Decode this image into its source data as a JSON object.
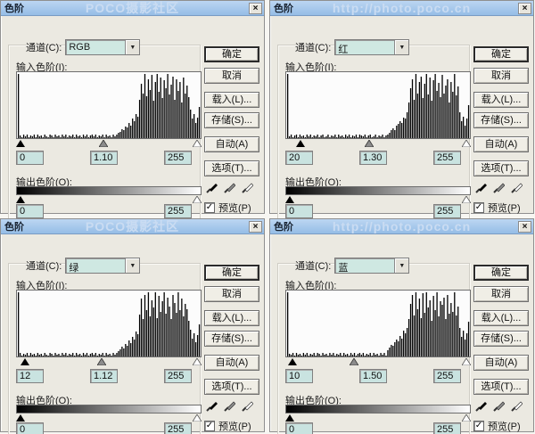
{
  "window_title": "色阶",
  "buttons": {
    "ok": "确定",
    "cancel": "取消",
    "load": "载入(L)...",
    "save": "存储(S)...",
    "auto": "自动(A)",
    "options": "选项(T)...",
    "preview": "预览(P)",
    "close": "×",
    "combo_arrow": "▼",
    "preview_check": "✓"
  },
  "labels": {
    "channel": "通道(C):",
    "input_levels": "输入色阶(I):",
    "output_levels": "输出色阶(O):"
  },
  "colors": {
    "titlebar_top": "#bcd6f2",
    "titlebar_bottom": "#95bde6",
    "watermark_text": "#cadcf2",
    "dialog_bg": "#ebe9e1",
    "field_bg": "#c9e3e0",
    "histogram_bar": "#000000",
    "slider_gray": "#8c8c8c"
  },
  "icons": {
    "eyedropper_black_tip": "#000000",
    "eyedropper_gray_tip": "#8c8c8c",
    "eyedropper_white_tip": "#ffffff"
  },
  "dialogs": [
    {
      "watermark": "POCO摄影社区",
      "channel_value": "RGB",
      "input_values": {
        "black": "0",
        "gamma": "1.10",
        "white": "255"
      },
      "output_values": {
        "black": "0",
        "white": "255"
      },
      "sliders": {
        "black_pct": 0,
        "gray_pct": 47,
        "white_pct": 100
      },
      "preview_checked": true,
      "histogram": [
        100,
        4,
        2,
        5,
        3,
        6,
        2,
        4,
        3,
        5,
        2,
        6,
        3,
        4,
        2,
        5,
        3,
        2,
        6,
        4,
        2,
        5,
        3,
        4,
        2,
        6,
        3,
        5,
        2,
        4,
        3,
        6,
        2,
        5,
        3,
        4,
        2,
        6,
        3,
        5,
        2,
        4,
        6,
        3,
        5,
        2,
        4,
        3,
        6,
        2,
        5,
        3,
        4,
        2,
        6,
        3,
        5,
        8,
        10,
        14,
        12,
        18,
        16,
        24,
        20,
        30,
        26,
        38,
        34,
        60,
        85,
        70,
        100,
        65,
        92,
        75,
        98,
        58,
        88,
        100,
        72,
        95,
        62,
        90,
        78,
        100,
        68,
        84,
        96,
        60,
        92,
        74,
        88,
        55,
        95,
        70,
        82,
        64,
        45,
        30,
        38,
        24,
        32,
        48
      ]
    },
    {
      "watermark": "http://photo.poco.cn",
      "channel_value": "红",
      "input_values": {
        "black": "20",
        "gamma": "1.30",
        "white": "255"
      },
      "output_values": {
        "black": "0",
        "white": "255"
      },
      "sliders": {
        "black_pct": 8,
        "gray_pct": 45,
        "white_pct": 100
      },
      "preview_checked": true,
      "histogram": [
        100,
        3,
        5,
        2,
        4,
        6,
        2,
        5,
        3,
        4,
        2,
        6,
        3,
        5,
        2,
        4,
        3,
        6,
        2,
        4,
        5,
        2,
        3,
        6,
        2,
        4,
        3,
        5,
        2,
        6,
        3,
        4,
        2,
        5,
        3,
        6,
        2,
        4,
        3,
        5,
        2,
        6,
        4,
        3,
        5,
        2,
        4,
        6,
        2,
        3,
        5,
        2,
        4,
        3,
        6,
        2,
        4,
        6,
        9,
        12,
        15,
        13,
        19,
        22,
        26,
        24,
        32,
        30,
        40,
        55,
        78,
        92,
        60,
        100,
        70,
        88,
        96,
        62,
        85,
        100,
        68,
        94,
        58,
        90,
        100,
        74,
        86,
        64,
        98,
        70,
        82,
        92,
        56,
        88,
        72,
        100,
        66,
        80,
        40,
        26,
        34,
        20,
        30,
        52
      ]
    },
    {
      "watermark": "POCO摄影社区",
      "channel_value": "绿",
      "input_values": {
        "black": "12",
        "gamma": "1.12",
        "white": "255"
      },
      "output_values": {
        "black": "0",
        "white": "255"
      },
      "sliders": {
        "black_pct": 5,
        "gray_pct": 46,
        "white_pct": 100
      },
      "preview_checked": true,
      "histogram": [
        100,
        5,
        2,
        4,
        3,
        6,
        2,
        5,
        3,
        4,
        2,
        6,
        3,
        4,
        2,
        5,
        3,
        2,
        6,
        4,
        2,
        5,
        3,
        4,
        2,
        6,
        3,
        5,
        2,
        4,
        3,
        6,
        2,
        5,
        3,
        4,
        2,
        6,
        3,
        5,
        2,
        4,
        6,
        3,
        5,
        2,
        4,
        3,
        6,
        2,
        5,
        3,
        4,
        2,
        6,
        3,
        5,
        8,
        11,
        15,
        13,
        19,
        17,
        25,
        21,
        31,
        27,
        39,
        35,
        65,
        90,
        58,
        96,
        72,
        100,
        62,
        88,
        76,
        100,
        60,
        94,
        70,
        86,
        100,
        66,
        92,
        78,
        58,
        96,
        84,
        68,
        100,
        72,
        90,
        62,
        82,
        74,
        55,
        42,
        28,
        36,
        22,
        34,
        50
      ]
    },
    {
      "watermark": "http://photo.poco.cn",
      "channel_value": "蓝",
      "input_values": {
        "black": "10",
        "gamma": "1.50",
        "white": "255"
      },
      "output_values": {
        "black": "0",
        "white": "255"
      },
      "sliders": {
        "black_pct": 4,
        "gray_pct": 37,
        "white_pct": 100
      },
      "preview_checked": true,
      "histogram": [
        100,
        4,
        3,
        5,
        2,
        6,
        3,
        4,
        2,
        5,
        3,
        6,
        2,
        4,
        3,
        5,
        2,
        6,
        4,
        2,
        5,
        3,
        4,
        2,
        6,
        3,
        5,
        2,
        4,
        3,
        6,
        2,
        5,
        3,
        4,
        2,
        6,
        3,
        5,
        2,
        4,
        6,
        3,
        5,
        2,
        4,
        3,
        6,
        2,
        5,
        3,
        4,
        2,
        6,
        3,
        5,
        2,
        10,
        14,
        18,
        16,
        22,
        26,
        24,
        32,
        28,
        40,
        36,
        44,
        58,
        82,
        96,
        64,
        100,
        74,
        90,
        60,
        98,
        68,
        100,
        76,
        88,
        56,
        94,
        72,
        100,
        62,
        86,
        80,
        92,
        58,
        96,
        66,
        84,
        70,
        100,
        64,
        78,
        44,
        30,
        40,
        26,
        36,
        54
      ]
    }
  ]
}
